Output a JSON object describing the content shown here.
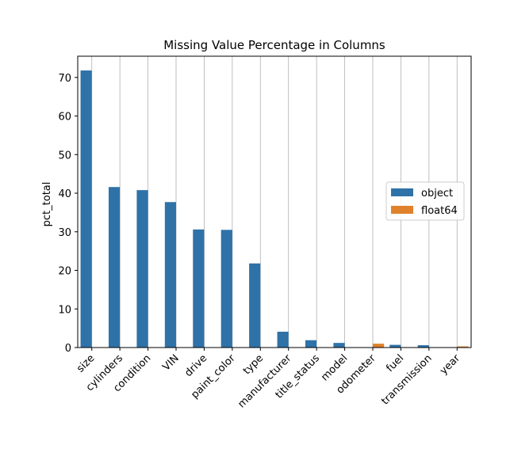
{
  "chart_data": {
    "type": "bar",
    "title": "Missing Value Percentage in Columns",
    "xlabel": "",
    "ylabel": "pct_total",
    "ylim": [
      0,
      75.5
    ],
    "yticks": [
      0,
      10,
      20,
      30,
      40,
      50,
      60,
      70
    ],
    "categories": [
      "size",
      "cylinders",
      "condition",
      "VIN",
      "drive",
      "paint_color",
      "type",
      "manufacturer",
      "title_status",
      "model",
      "odometer",
      "fuel",
      "transmission",
      "year"
    ],
    "series": [
      {
        "name": "object",
        "color": "#2f72a8",
        "values": [
          71.8,
          41.6,
          40.8,
          37.7,
          30.6,
          30.5,
          21.8,
          4.1,
          1.9,
          1.2,
          null,
          0.7,
          0.6,
          null
        ]
      },
      {
        "name": "float64",
        "color": "#e0812b",
        "values": [
          null,
          null,
          null,
          null,
          null,
          null,
          null,
          null,
          null,
          null,
          1.0,
          null,
          null,
          0.3
        ]
      }
    ],
    "grid": "x",
    "legend_position": "center-right"
  }
}
